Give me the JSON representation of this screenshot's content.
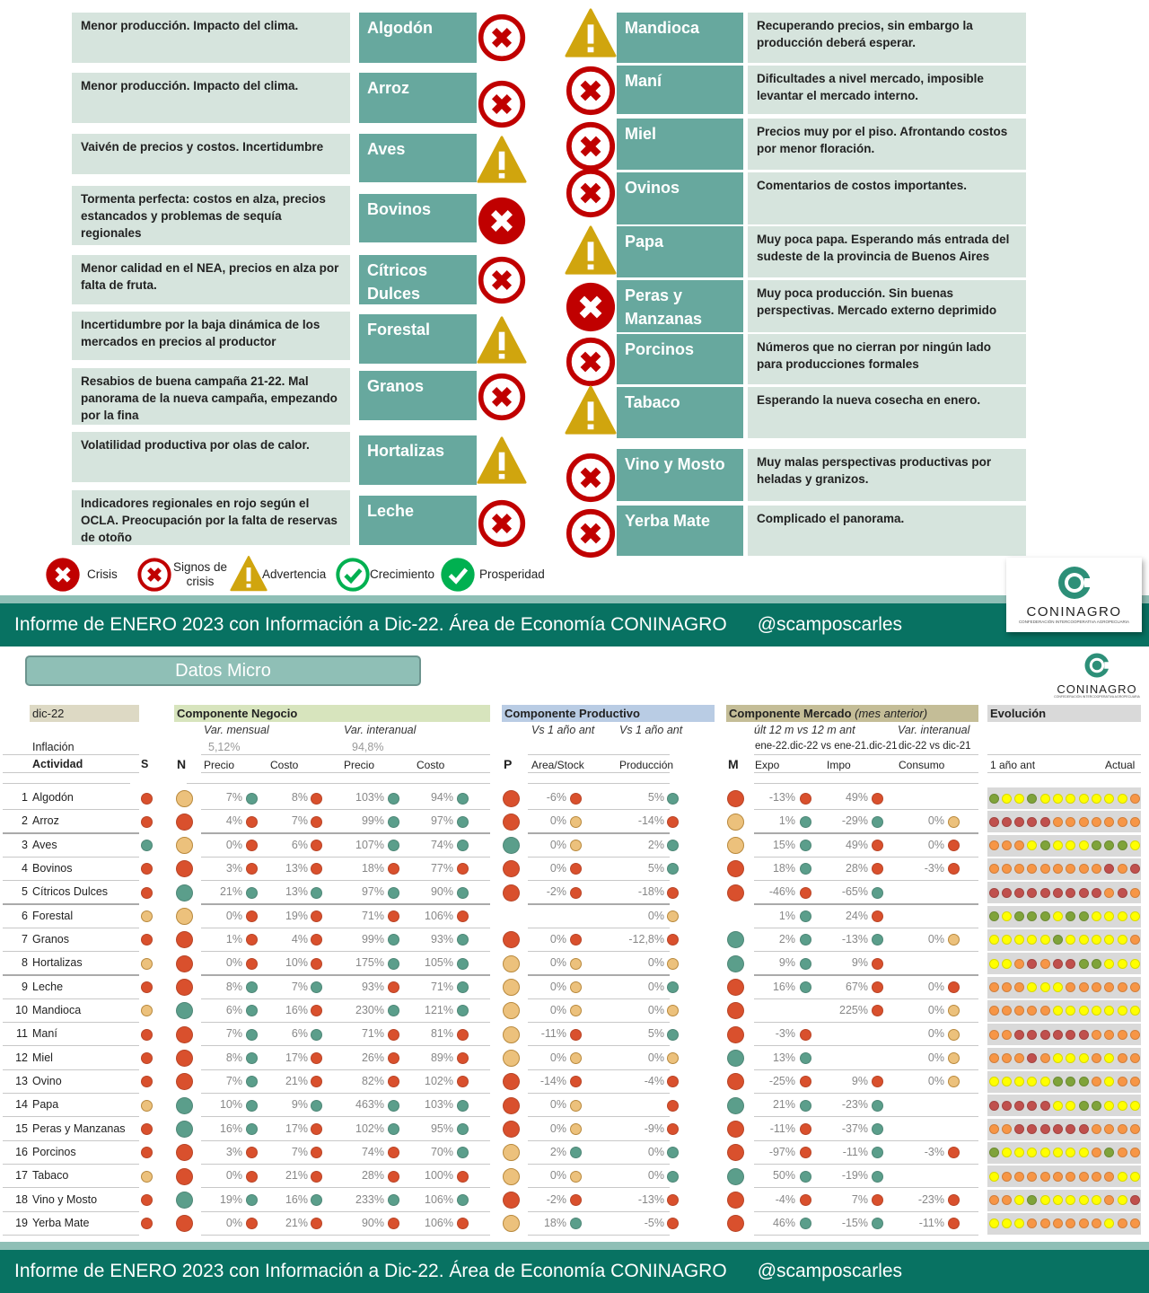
{
  "legend": [
    {
      "icon": "crisis",
      "label": "Crisis"
    },
    {
      "icon": "signos",
      "label": "Signos de crisis"
    },
    {
      "icon": "warning",
      "label": "Advertencia"
    },
    {
      "icon": "crecimiento",
      "label": "Crecimiento"
    },
    {
      "icon": "prosperidad",
      "label": "Prosperidad"
    }
  ],
  "left_items": [
    {
      "name": "Algodón",
      "status": "signos",
      "comment": "Menor producción. Impacto del clima."
    },
    {
      "name": "Arroz",
      "status": "signos",
      "comment": "Menor producción. Impacto del clima."
    },
    {
      "name": "Aves",
      "status": "warning",
      "comment": "Vaivén de precios y costos. Incertidumbre"
    },
    {
      "name": "Bovinos",
      "status": "crisis",
      "comment": "Tormenta perfecta: costos en alza, precios estancados y problemas de sequía regionales"
    },
    {
      "name": "Cítricos Dulces",
      "status": "signos",
      "comment": "Menor calidad en el NEA, precios en alza por falta de fruta."
    },
    {
      "name": "Forestal",
      "status": "warning",
      "comment": "Incertidumbre por la baja dinámica de los mercados en precios al productor"
    },
    {
      "name": "Granos",
      "status": "signos",
      "comment": "Resabios de buena campaña 21-22. Mal panorama de la nueva campaña, empezando por la fina"
    },
    {
      "name": "Hortalizas",
      "status": "warning",
      "comment": "Volatilidad productiva por olas de calor."
    },
    {
      "name": "Leche",
      "status": "signos",
      "comment": "Indicadores regionales en rojo según el OCLA. Preocupación por la falta de reservas de otoño"
    }
  ],
  "right_items": [
    {
      "name": "Mandioca",
      "status": "warning",
      "comment": "Recuperando precios, sin embargo la producción deberá esperar."
    },
    {
      "name": "Maní",
      "status": "signos",
      "comment": "Dificultades a nivel mercado, imposible levantar el mercado interno."
    },
    {
      "name": "Miel",
      "status": "signos",
      "comment": "Precios muy por el piso. Afrontando costos por menor floración."
    },
    {
      "name": "Ovinos",
      "status": "signos",
      "comment": "Comentarios de costos importantes."
    },
    {
      "name": "Papa",
      "status": "warning",
      "comment": "Muy poca papa. Esperando más entrada del sudeste de la provincia de Buenos Aires"
    },
    {
      "name": "Peras y Manzanas",
      "status": "crisis",
      "comment": "Muy poca producción. Sin buenas perspectivas. Mercado externo deprimido"
    },
    {
      "name": "Porcinos",
      "status": "signos",
      "comment": "Números que no cierran por ningún lado para producciones formales"
    },
    {
      "name": "Tabaco",
      "status": "warning",
      "comment": "Esperando la nueva cosecha en enero."
    },
    {
      "name": "Vino y Mosto",
      "status": "signos",
      "comment": "Muy malas perspectivas productivas por heladas y granizos."
    },
    {
      "name": "Yerba Mate",
      "status": "signos",
      "comment": "Complicado el panorama."
    }
  ],
  "banner": {
    "text": "Informe de ENERO 2023 con Información a Dic-22. Área de Economía CONINAGRO",
    "handle": "@scamposcarles"
  },
  "logo": {
    "name": "CONINAGRO",
    "subtitle": "Confederación Intercooperativa Agropecuaria"
  },
  "datos_micro": "Datos Micro",
  "table": {
    "period": "dic-22",
    "inflation_label": "Inflación",
    "activity_label": "Actividad",
    "s": "S",
    "n": "N",
    "p": "P",
    "m": "M",
    "negocio": {
      "title": "Componente Negocio",
      "var_mensual": "Var. mensual",
      "var_interanual": "Var. interanual",
      "infl_mensual": "5,12%",
      "infl_interanual": "94,8%",
      "precio": "Precio",
      "costo": "Costo"
    },
    "productivo": {
      "title": "Componente Productivo",
      "vs1": "Vs 1 año ant",
      "vs2": "Vs 1 año ant",
      "area": "Area/Stock",
      "prod": "Producción"
    },
    "mercado": {
      "title": "Componente Mercado",
      "title_note": "(mes anterior)",
      "sub1": "últ 12 m vs 12 m ant",
      "sub2": "Var. interanual",
      "range1": "ene-22.dic-22 vs ene-21.dic-21",
      "range2": "dic-22 vs dic-21",
      "expo": "Expo",
      "impo": "Impo",
      "consumo": "Consumo"
    },
    "evolucion": {
      "title": "Evolución",
      "start": "1 año ant",
      "end": "Actual"
    },
    "colors": {
      "r": "#d9502d",
      "g": "#5b9e8b",
      "y": "#ecc17c",
      "G": "#7fa33a",
      "Y": "#ffff00",
      "O": "#f79646",
      "R": "#c0504d"
    },
    "rows": [
      {
        "n": "1",
        "name": "Algodón",
        "s": "r",
        "ns": "y",
        "p": "r",
        "m": "r",
        "neg": [
          [
            "7%",
            "g"
          ],
          [
            "8%",
            "r"
          ],
          [
            "103%",
            "g"
          ],
          [
            "94%",
            "g"
          ]
        ],
        "prod": [
          [
            "-6%",
            "r"
          ],
          [
            "5%",
            "g"
          ]
        ],
        "mer": [
          [
            "-13%",
            "r"
          ],
          [
            "49%",
            "r"
          ],
          null
        ],
        "evo": "GYYGYYYYYYYO"
      },
      {
        "n": "2",
        "name": "Arroz",
        "s": "r",
        "ns": "r",
        "p": "r",
        "m": "y",
        "neg": [
          [
            "4%",
            "r"
          ],
          [
            "7%",
            "r"
          ],
          [
            "99%",
            "g"
          ],
          [
            "97%",
            "g"
          ]
        ],
        "prod": [
          [
            "0%",
            "y"
          ],
          [
            "-14%",
            "r"
          ]
        ],
        "mer": [
          [
            "1%",
            "g"
          ],
          [
            "-29%",
            "g"
          ],
          [
            "0%",
            "y"
          ]
        ],
        "evo": "RRRRROOOOOOO"
      },
      {
        "n": "3",
        "name": "Aves",
        "s": "g",
        "ns": "y",
        "p": "g",
        "m": "y",
        "neg": [
          [
            "0%",
            "r"
          ],
          [
            "6%",
            "r"
          ],
          [
            "107%",
            "g"
          ],
          [
            "74%",
            "g"
          ]
        ],
        "prod": [
          [
            "0%",
            "y"
          ],
          [
            "2%",
            "g"
          ]
        ],
        "mer": [
          [
            "15%",
            "g"
          ],
          [
            "49%",
            "r"
          ],
          [
            "0%",
            "r"
          ]
        ],
        "evo": "OOOYGYYYGGGY"
      },
      {
        "n": "4",
        "name": "Bovinos",
        "s": "r",
        "ns": "r",
        "p": "r",
        "m": "r",
        "neg": [
          [
            "3%",
            "r"
          ],
          [
            "13%",
            "r"
          ],
          [
            "18%",
            "r"
          ],
          [
            "77%",
            "r"
          ]
        ],
        "prod": [
          [
            "0%",
            "r"
          ],
          [
            "5%",
            "g"
          ]
        ],
        "mer": [
          [
            "18%",
            "g"
          ],
          [
            "28%",
            "r"
          ],
          [
            "-3%",
            "r"
          ]
        ],
        "evo": "OOOOOOOOOROR"
      },
      {
        "n": "5",
        "name": "Cítricos Dulces",
        "s": "r",
        "ns": "g",
        "p": "r",
        "m": "r",
        "neg": [
          [
            "21%",
            "g"
          ],
          [
            "13%",
            "g"
          ],
          [
            "97%",
            "g"
          ],
          [
            "90%",
            "g"
          ]
        ],
        "prod": [
          [
            "-2%",
            "r"
          ],
          [
            "-18%",
            "r"
          ]
        ],
        "mer": [
          [
            "-46%",
            "r"
          ],
          [
            "-65%",
            "g"
          ],
          null
        ],
        "evo": "RRRRRRRRRORO"
      },
      {
        "n": "6",
        "name": "Forestal",
        "s": "y",
        "ns": "y",
        "p": null,
        "m": null,
        "neg": [
          [
            "0%",
            "r"
          ],
          [
            "19%",
            "r"
          ],
          [
            "71%",
            "r"
          ],
          [
            "106%",
            "r"
          ]
        ],
        "prod": [
          null,
          [
            "0%",
            "y"
          ]
        ],
        "mer": [
          [
            "1%",
            "g"
          ],
          [
            "24%",
            "r"
          ],
          null
        ],
        "evo": "GYGGGYGGYYYY"
      },
      {
        "n": "7",
        "name": "Granos",
        "s": "r",
        "ns": "r",
        "p": "r",
        "m": "g",
        "neg": [
          [
            "1%",
            "r"
          ],
          [
            "4%",
            "r"
          ],
          [
            "99%",
            "g"
          ],
          [
            "93%",
            "g"
          ]
        ],
        "prod": [
          [
            "0%",
            "r"
          ],
          [
            "-12,8%",
            "r"
          ]
        ],
        "mer": [
          [
            "2%",
            "g"
          ],
          [
            "-13%",
            "g"
          ],
          [
            "0%",
            "y"
          ]
        ],
        "evo": "YYYYYGYYYYYO"
      },
      {
        "n": "8",
        "name": "Hortalizas",
        "s": "y",
        "ns": "r",
        "p": "y",
        "m": "g",
        "neg": [
          [
            "0%",
            "r"
          ],
          [
            "10%",
            "r"
          ],
          [
            "175%",
            "g"
          ],
          [
            "105%",
            "g"
          ]
        ],
        "prod": [
          [
            "0%",
            "y"
          ],
          [
            "0%",
            "y"
          ]
        ],
        "mer": [
          [
            "9%",
            "g"
          ],
          [
            "9%",
            "r"
          ],
          null
        ],
        "evo": "YYORORRGGYYY"
      },
      {
        "n": "9",
        "name": "Leche",
        "s": "r",
        "ns": "r",
        "p": "y",
        "m": "r",
        "neg": [
          [
            "8%",
            "g"
          ],
          [
            "7%",
            "g"
          ],
          [
            "93%",
            "r"
          ],
          [
            "71%",
            "g"
          ]
        ],
        "prod": [
          [
            "0%",
            "y"
          ],
          [
            "0%",
            "g"
          ]
        ],
        "mer": [
          [
            "16%",
            "g"
          ],
          [
            "67%",
            "r"
          ],
          [
            "0%",
            "r"
          ]
        ],
        "evo": "OOOYYYOOOOOO"
      },
      {
        "n": "10",
        "name": "Mandioca",
        "s": "y",
        "ns": "g",
        "p": "y",
        "m": "r",
        "neg": [
          [
            "6%",
            "g"
          ],
          [
            "16%",
            "r"
          ],
          [
            "230%",
            "g"
          ],
          [
            "121%",
            "g"
          ]
        ],
        "prod": [
          [
            "0%",
            "y"
          ],
          [
            "0%",
            "y"
          ]
        ],
        "mer": [
          null,
          [
            "225%",
            "r"
          ],
          [
            "0%",
            "y"
          ]
        ],
        "evo": "OOOOOYYYYYYY"
      },
      {
        "n": "11",
        "name": "Maní",
        "s": "r",
        "ns": "r",
        "p": "y",
        "m": "r",
        "neg": [
          [
            "7%",
            "g"
          ],
          [
            "6%",
            "g"
          ],
          [
            "71%",
            "r"
          ],
          [
            "81%",
            "r"
          ]
        ],
        "prod": [
          [
            "-11%",
            "r"
          ],
          [
            "5%",
            "g"
          ]
        ],
        "mer": [
          [
            "-3%",
            "r"
          ],
          null,
          [
            "0%",
            "y"
          ]
        ],
        "evo": "OORRRRRROOOO"
      },
      {
        "n": "12",
        "name": "Miel",
        "s": "r",
        "ns": "r",
        "p": "y",
        "m": "g",
        "neg": [
          [
            "8%",
            "g"
          ],
          [
            "17%",
            "r"
          ],
          [
            "26%",
            "r"
          ],
          [
            "89%",
            "r"
          ]
        ],
        "prod": [
          [
            "0%",
            "y"
          ],
          [
            "0%",
            "y"
          ]
        ],
        "mer": [
          [
            "13%",
            "g"
          ],
          null,
          [
            "0%",
            "y"
          ]
        ],
        "evo": "OOOROYYYOYOO"
      },
      {
        "n": "13",
        "name": "Ovino",
        "s": "r",
        "ns": "r",
        "p": "r",
        "m": "r",
        "neg": [
          [
            "7%",
            "g"
          ],
          [
            "21%",
            "r"
          ],
          [
            "82%",
            "r"
          ],
          [
            "102%",
            "r"
          ]
        ],
        "prod": [
          [
            "-14%",
            "r"
          ],
          [
            "-4%",
            "r"
          ]
        ],
        "mer": [
          [
            "-25%",
            "r"
          ],
          [
            "9%",
            "r"
          ],
          [
            "0%",
            "y"
          ]
        ],
        "evo": "YYYYYGGGOYOO"
      },
      {
        "n": "14",
        "name": "Papa",
        "s": "y",
        "ns": "g",
        "p": "r",
        "m": "g",
        "neg": [
          [
            "10%",
            "g"
          ],
          [
            "9%",
            "g"
          ],
          [
            "463%",
            "g"
          ],
          [
            "103%",
            "g"
          ]
        ],
        "prod": [
          [
            "0%",
            "y"
          ],
          [
            "",
            "r"
          ]
        ],
        "mer": [
          [
            "21%",
            "g"
          ],
          [
            "-23%",
            "g"
          ],
          null
        ],
        "evo": "RRRRRYYGGYYY"
      },
      {
        "n": "15",
        "name": "Peras y Manzanas",
        "s": "r",
        "ns": "g",
        "p": "r",
        "m": "r",
        "neg": [
          [
            "16%",
            "g"
          ],
          [
            "17%",
            "r"
          ],
          [
            "102%",
            "g"
          ],
          [
            "95%",
            "g"
          ]
        ],
        "prod": [
          [
            "0%",
            "y"
          ],
          [
            "-9%",
            "r"
          ]
        ],
        "mer": [
          [
            "-11%",
            "r"
          ],
          [
            "-37%",
            "g"
          ],
          null
        ],
        "evo": "OORRRRRROOOO"
      },
      {
        "n": "16",
        "name": "Porcinos",
        "s": "r",
        "ns": "r",
        "p": "y",
        "m": "r",
        "neg": [
          [
            "3%",
            "r"
          ],
          [
            "7%",
            "r"
          ],
          [
            "74%",
            "r"
          ],
          [
            "70%",
            "g"
          ]
        ],
        "prod": [
          [
            "2%",
            "g"
          ],
          [
            "0%",
            "g"
          ]
        ],
        "mer": [
          [
            "-97%",
            "r"
          ],
          [
            "-11%",
            "g"
          ],
          [
            "-3%",
            "r"
          ]
        ],
        "evo": "GYYYYYYYOGOO"
      },
      {
        "n": "17",
        "name": "Tabaco",
        "s": "y",
        "ns": "r",
        "p": "y",
        "m": "g",
        "neg": [
          [
            "0%",
            "r"
          ],
          [
            "21%",
            "r"
          ],
          [
            "28%",
            "r"
          ],
          [
            "100%",
            "r"
          ]
        ],
        "prod": [
          [
            "0%",
            "y"
          ],
          [
            "0%",
            "g"
          ]
        ],
        "mer": [
          [
            "50%",
            "g"
          ],
          [
            "-19%",
            "g"
          ],
          null
        ],
        "evo": "YOOOOOOOOOYY"
      },
      {
        "n": "18",
        "name": "Vino y Mosto",
        "s": "r",
        "ns": "g",
        "p": "r",
        "m": "r",
        "neg": [
          [
            "19%",
            "g"
          ],
          [
            "16%",
            "g"
          ],
          [
            "233%",
            "g"
          ],
          [
            "106%",
            "g"
          ]
        ],
        "prod": [
          [
            "-2%",
            "r"
          ],
          [
            "-13%",
            "r"
          ]
        ],
        "mer": [
          [
            "-4%",
            "r"
          ],
          [
            "7%",
            "r"
          ],
          [
            "-23%",
            "r"
          ]
        ],
        "evo": "OOYGYYYYYOYR"
      },
      {
        "n": "19",
        "name": "Yerba Mate",
        "s": "r",
        "ns": "r",
        "p": "y",
        "m": "r",
        "neg": [
          [
            "0%",
            "r"
          ],
          [
            "21%",
            "r"
          ],
          [
            "90%",
            "r"
          ],
          [
            "106%",
            "r"
          ]
        ],
        "prod": [
          [
            "18%",
            "g"
          ],
          [
            "-5%",
            "r"
          ]
        ],
        "mer": [
          [
            "46%",
            "g"
          ],
          [
            "-15%",
            "g"
          ],
          [
            "-11%",
            "r"
          ]
        ],
        "evo": "YYYOOOOOOYOO"
      }
    ]
  }
}
